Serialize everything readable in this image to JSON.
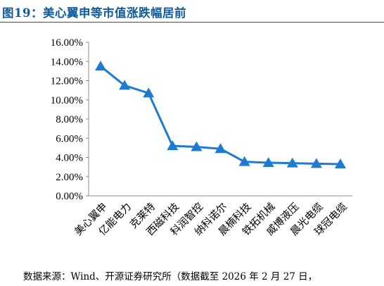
{
  "title": "图19：美心翼申等市值涨跌幅居前",
  "source": "数据来源：Wind、开源证券研究所（数据截至 2026 年 2 月 27 日，",
  "chart_data": {
    "type": "line",
    "categories": [
      "美心翼申",
      "亿能电力",
      "克莱特",
      "西磁科技",
      "科润智控",
      "纳科诺尔",
      "晨楠科技",
      "铁拓机械",
      "威博液压",
      "晨光电缆",
      "球冠电缆"
    ],
    "values": [
      13.5,
      11.5,
      10.7,
      5.2,
      5.1,
      4.9,
      3.55,
      3.45,
      3.4,
      3.35,
      3.3
    ],
    "ylim": [
      0,
      16
    ],
    "yticks": [
      "0.00%",
      "2.00%",
      "4.00%",
      "6.00%",
      "8.00%",
      "10.00%",
      "12.00%",
      "14.00%",
      "16.00%"
    ],
    "grid": false,
    "legend": "none",
    "line_color": "#1f7bd1",
    "marker": "triangle"
  }
}
